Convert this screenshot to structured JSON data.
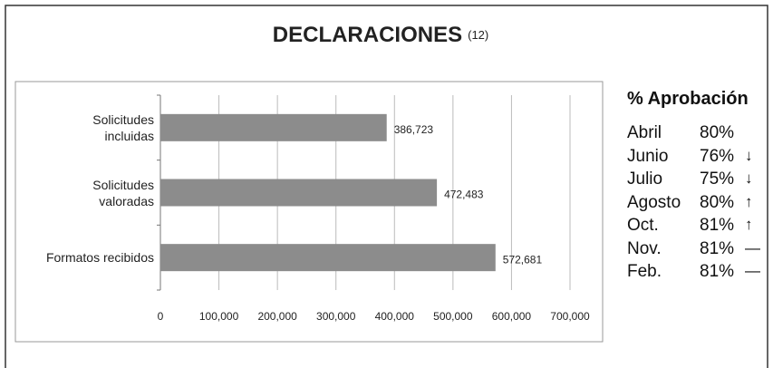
{
  "chart_data": {
    "type": "hbar",
    "title": "DECLARACIONES",
    "subtitle": "(12)",
    "categories": [
      "Solicitudes\nincluidas",
      "Solicitudes\nvaloradas",
      "Formatos recibidos"
    ],
    "values": [
      386723,
      472483,
      572681
    ],
    "value_labels": [
      "386,723",
      "472,483",
      "572,681"
    ],
    "color": "#8c8c8c",
    "xlim": [
      0,
      700000
    ],
    "xticks": [
      0,
      {
        "value": 100000,
        "label": "100,000"
      },
      {
        "value": 200000,
        "label": "200,000"
      },
      {
        "value": 300000,
        "label": "300,000"
      },
      {
        "value": 400000,
        "label": "400,000"
      },
      {
        "value": 500000,
        "label": "500,000"
      },
      {
        "value": 600000,
        "label": "600,000"
      },
      {
        "value": 700000,
        "label": "700,000"
      }
    ],
    "grid": true
  },
  "approval": {
    "title": "% Aprobación",
    "rows": [
      {
        "month": "Abril",
        "value": "80%"
      },
      {
        "month": "Junio",
        "value": "76%",
        "trend": "↓"
      },
      {
        "month": "Julio",
        "value": "75%",
        "trend": "↓"
      },
      {
        "month": "Agosto",
        "value": "80%",
        "trend": "↑"
      },
      {
        "month": "Oct.",
        "value": "81%",
        "trend": "↑"
      },
      {
        "month": "Nov.",
        "value": "81%",
        "trend": "—"
      },
      {
        "month": "Feb.",
        "value": "81%",
        "trend": "—"
      }
    ]
  }
}
